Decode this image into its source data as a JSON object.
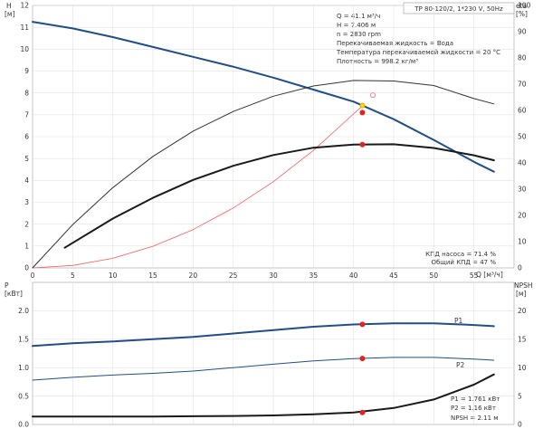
{
  "header": {
    "pump_info": "TP 80-120/2, 1*230 V, 50Hz"
  },
  "info_lines": [
    "Q = 41.1 м³/ч",
    "H = 7.406 м",
    "n = 2830 rpm",
    "Перекачиваемая жидкость = Вода",
    "Температура перекачиваемой жидкости = 20 °C",
    "Плотность = 998.2 кг/м³"
  ],
  "efficiency_info": [
    "КПД насоса = 71.4 %",
    "Общий КПД = 47 %"
  ],
  "power_info": [
    "P1 = 1.761 кВт",
    "P2 = 1.16 кВт",
    "NPSH = 2.11 м"
  ],
  "chart_data": [
    {
      "type": "line",
      "x_axis": {
        "label": "Q [м³/ч]",
        "min": 0,
        "max": 60,
        "ticks": [
          0,
          5,
          10,
          15,
          20,
          25,
          30,
          35,
          40,
          45,
          50,
          55
        ]
      },
      "y_axis_left": {
        "label": "H [м]",
        "min": 0,
        "max": 12,
        "ticks": [
          0,
          1,
          2,
          3,
          4,
          5,
          6,
          7,
          8,
          9,
          10,
          11,
          12
        ]
      },
      "y_axis_right": {
        "label": "eta [%]",
        "min": 0,
        "max": 100,
        "ticks": [
          0,
          10,
          20,
          30,
          40,
          50,
          60,
          70,
          80,
          90,
          100
        ]
      },
      "grid": true,
      "series": [
        {
          "id": "head",
          "axis": "left",
          "color": "#1f4e8c",
          "width": 2,
          "x": [
            0,
            5,
            10,
            15,
            20,
            25,
            30,
            35,
            40,
            45,
            50,
            55,
            57.5
          ],
          "y": [
            11.25,
            10.95,
            10.55,
            10.1,
            9.65,
            9.2,
            8.7,
            8.15,
            7.6,
            6.8,
            5.85,
            4.85,
            4.4
          ]
        },
        {
          "id": "system",
          "axis": "left",
          "color": "#ff5a5a",
          "width": 0.8,
          "x": [
            0,
            5,
            10,
            15,
            20,
            25,
            30,
            35,
            41.1
          ],
          "y": [
            0,
            0.11,
            0.44,
            0.99,
            1.75,
            2.74,
            3.94,
            5.37,
            7.406
          ]
        },
        {
          "id": "p1_eta",
          "axis": "right",
          "color": "#333333",
          "width": 1,
          "x": [
            0,
            5,
            10,
            15,
            20,
            25,
            30,
            35,
            40,
            45,
            50,
            55,
            57.5
          ],
          "y": [
            0,
            16.5,
            30.6,
            42.5,
            52.1,
            59.6,
            65.4,
            69.3,
            71.4,
            71.2,
            69.5,
            64.5,
            62.5
          ]
        },
        {
          "id": "total_eta",
          "axis": "right",
          "color": "#1a1a1a",
          "width": 2,
          "x": [
            4,
            10,
            15,
            20,
            25,
            30,
            35,
            40,
            45,
            50,
            55,
            57.5
          ],
          "y": [
            7.7,
            18.8,
            26.7,
            33.5,
            38.9,
            43.0,
            45.8,
            47.0,
            47.1,
            45.7,
            42.9,
            41.0
          ]
        }
      ],
      "operating_point": {
        "x": 41.1,
        "y": 7.406,
        "eta_pump": 71.4,
        "eta_total": 47
      },
      "points": [
        {
          "x": 41.1,
          "y": 7.42,
          "axis": "left",
          "fill": "#ffd700",
          "stroke": "#e0a000"
        },
        {
          "x": 41.1,
          "y": 7.1,
          "axis": "left",
          "fill": "#e82020",
          "stroke": "#e82020"
        },
        {
          "x": 42.4,
          "y": 7.9,
          "axis": "left",
          "fill": "none",
          "stroke": "#ff6a6a"
        },
        {
          "x": 41.1,
          "y": 47,
          "axis": "right",
          "fill": "#e82020",
          "stroke": "#e82020"
        }
      ]
    },
    {
      "type": "line",
      "x_axis": {
        "min": 0,
        "max": 60
      },
      "y_axis_left": {
        "label": "P [кВт]",
        "min": 0,
        "max": 2.5,
        "ticks": [
          0.0,
          0.5,
          1.0,
          1.5,
          2.0
        ],
        "tick_labels": [
          "0.0",
          "0.5",
          "1.0",
          "1.5",
          "2.0"
        ]
      },
      "y_axis_right": {
        "label": "NPSH [м]",
        "min": 0,
        "max": 25,
        "ticks": [
          0,
          5,
          10,
          15,
          20
        ]
      },
      "grid": true,
      "series": [
        {
          "id": "P1",
          "name": "P1",
          "axis": "left",
          "color": "#1f4e8c",
          "width": 2,
          "x": [
            0,
            5,
            10,
            15,
            20,
            25,
            30,
            35,
            40,
            45,
            50,
            55,
            57.5
          ],
          "y": [
            1.38,
            1.43,
            1.46,
            1.5,
            1.54,
            1.6,
            1.66,
            1.72,
            1.76,
            1.78,
            1.78,
            1.75,
            1.73
          ]
        },
        {
          "id": "P2",
          "name": "P2",
          "axis": "left",
          "color": "#1f4e8c",
          "width": 1,
          "x": [
            0,
            5,
            10,
            15,
            20,
            25,
            30,
            35,
            40,
            45,
            50,
            55,
            57.5
          ],
          "y": [
            0.78,
            0.83,
            0.87,
            0.9,
            0.94,
            1.0,
            1.06,
            1.12,
            1.16,
            1.18,
            1.18,
            1.15,
            1.13
          ]
        },
        {
          "id": "NPSH",
          "axis": "right",
          "color": "#1a1a1a",
          "width": 2,
          "x": [
            0,
            5,
            10,
            15,
            20,
            25,
            30,
            35,
            40,
            45,
            50,
            55,
            57.5
          ],
          "y": [
            1.4,
            1.38,
            1.38,
            1.4,
            1.45,
            1.5,
            1.6,
            1.8,
            2.1,
            2.9,
            4.4,
            7.0,
            8.8
          ]
        }
      ],
      "points": [
        {
          "x": 41.1,
          "y": 1.761,
          "axis": "left",
          "fill": "#e82020",
          "stroke": "#e82020"
        },
        {
          "x": 41.1,
          "y": 1.16,
          "axis": "left",
          "fill": "#e82020",
          "stroke": "#e82020"
        },
        {
          "x": 41.1,
          "y": 2.11,
          "axis": "right",
          "fill": "#e82020",
          "stroke": "#e82020"
        }
      ]
    }
  ]
}
